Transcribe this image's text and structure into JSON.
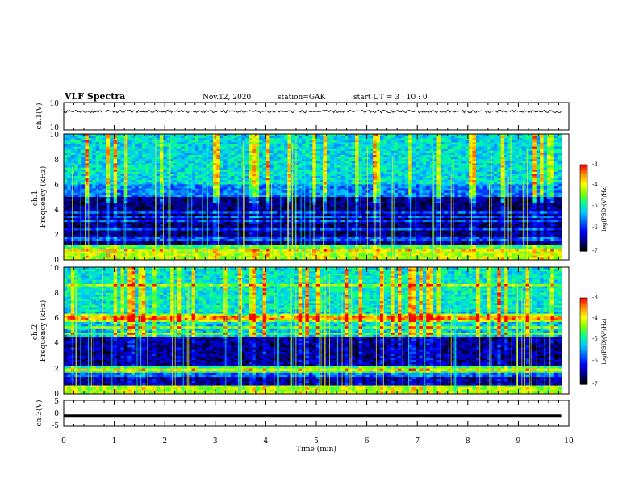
{
  "header": {
    "title": "VLF Spectra",
    "date": "Nov.12, 2020",
    "station": "station=GAK",
    "start": "start  UT =   3  : 10 : 0"
  },
  "chart_data": [
    {
      "type": "line",
      "ylabel": "ch.1(V)",
      "ylim": [
        -10,
        10
      ],
      "ytick_labels": [
        "10",
        "-10"
      ],
      "trace_level": 3.5,
      "trace_noise": 2
    },
    {
      "type": "heatmap",
      "ylabel": "ch.1\nFrequency (kHz)",
      "ylim": [
        0,
        10
      ],
      "ytick_labels": [
        "0",
        "2",
        "4",
        "6",
        "8",
        "10"
      ],
      "colorbar": {
        "label": "log(PSD)(V²/Hz)",
        "range": [
          -7,
          -3
        ],
        "tick_labels": [
          "-3",
          "-4",
          "-5",
          "-6",
          "-7"
        ]
      }
    },
    {
      "type": "heatmap",
      "ylabel": "ch.2\nFrequency (kHz)",
      "ylim": [
        0,
        10
      ],
      "ytick_labels": [
        "0",
        "2",
        "4",
        "6",
        "8",
        "10"
      ],
      "colorbar": {
        "label": "log(PSD)(V²/Hz)",
        "range": [
          -7,
          -3
        ],
        "tick_labels": [
          "-3",
          "-4",
          "-5",
          "-6",
          "-7"
        ]
      }
    },
    {
      "type": "line",
      "ylabel": "ch.3(V)",
      "ylim": [
        -5,
        5
      ],
      "ytick_labels": [
        "5",
        "0",
        "-5"
      ],
      "trace_level": -1
    }
  ],
  "time_axis": {
    "label": "Time  (min)",
    "xlim": [
      0,
      10
    ],
    "tick_labels": [
      "0",
      "1",
      "2",
      "3",
      "4",
      "5",
      "6",
      "7",
      "8",
      "9",
      "10"
    ],
    "data_end": 9.85
  },
  "colors": {
    "colormap": [
      "#000000",
      "#00008a",
      "#0000ff",
      "#0064ff",
      "#00c8ff",
      "#00ff96",
      "#7cff00",
      "#ffff00",
      "#ff9600",
      "#ff0000",
      "#ffffff"
    ]
  }
}
